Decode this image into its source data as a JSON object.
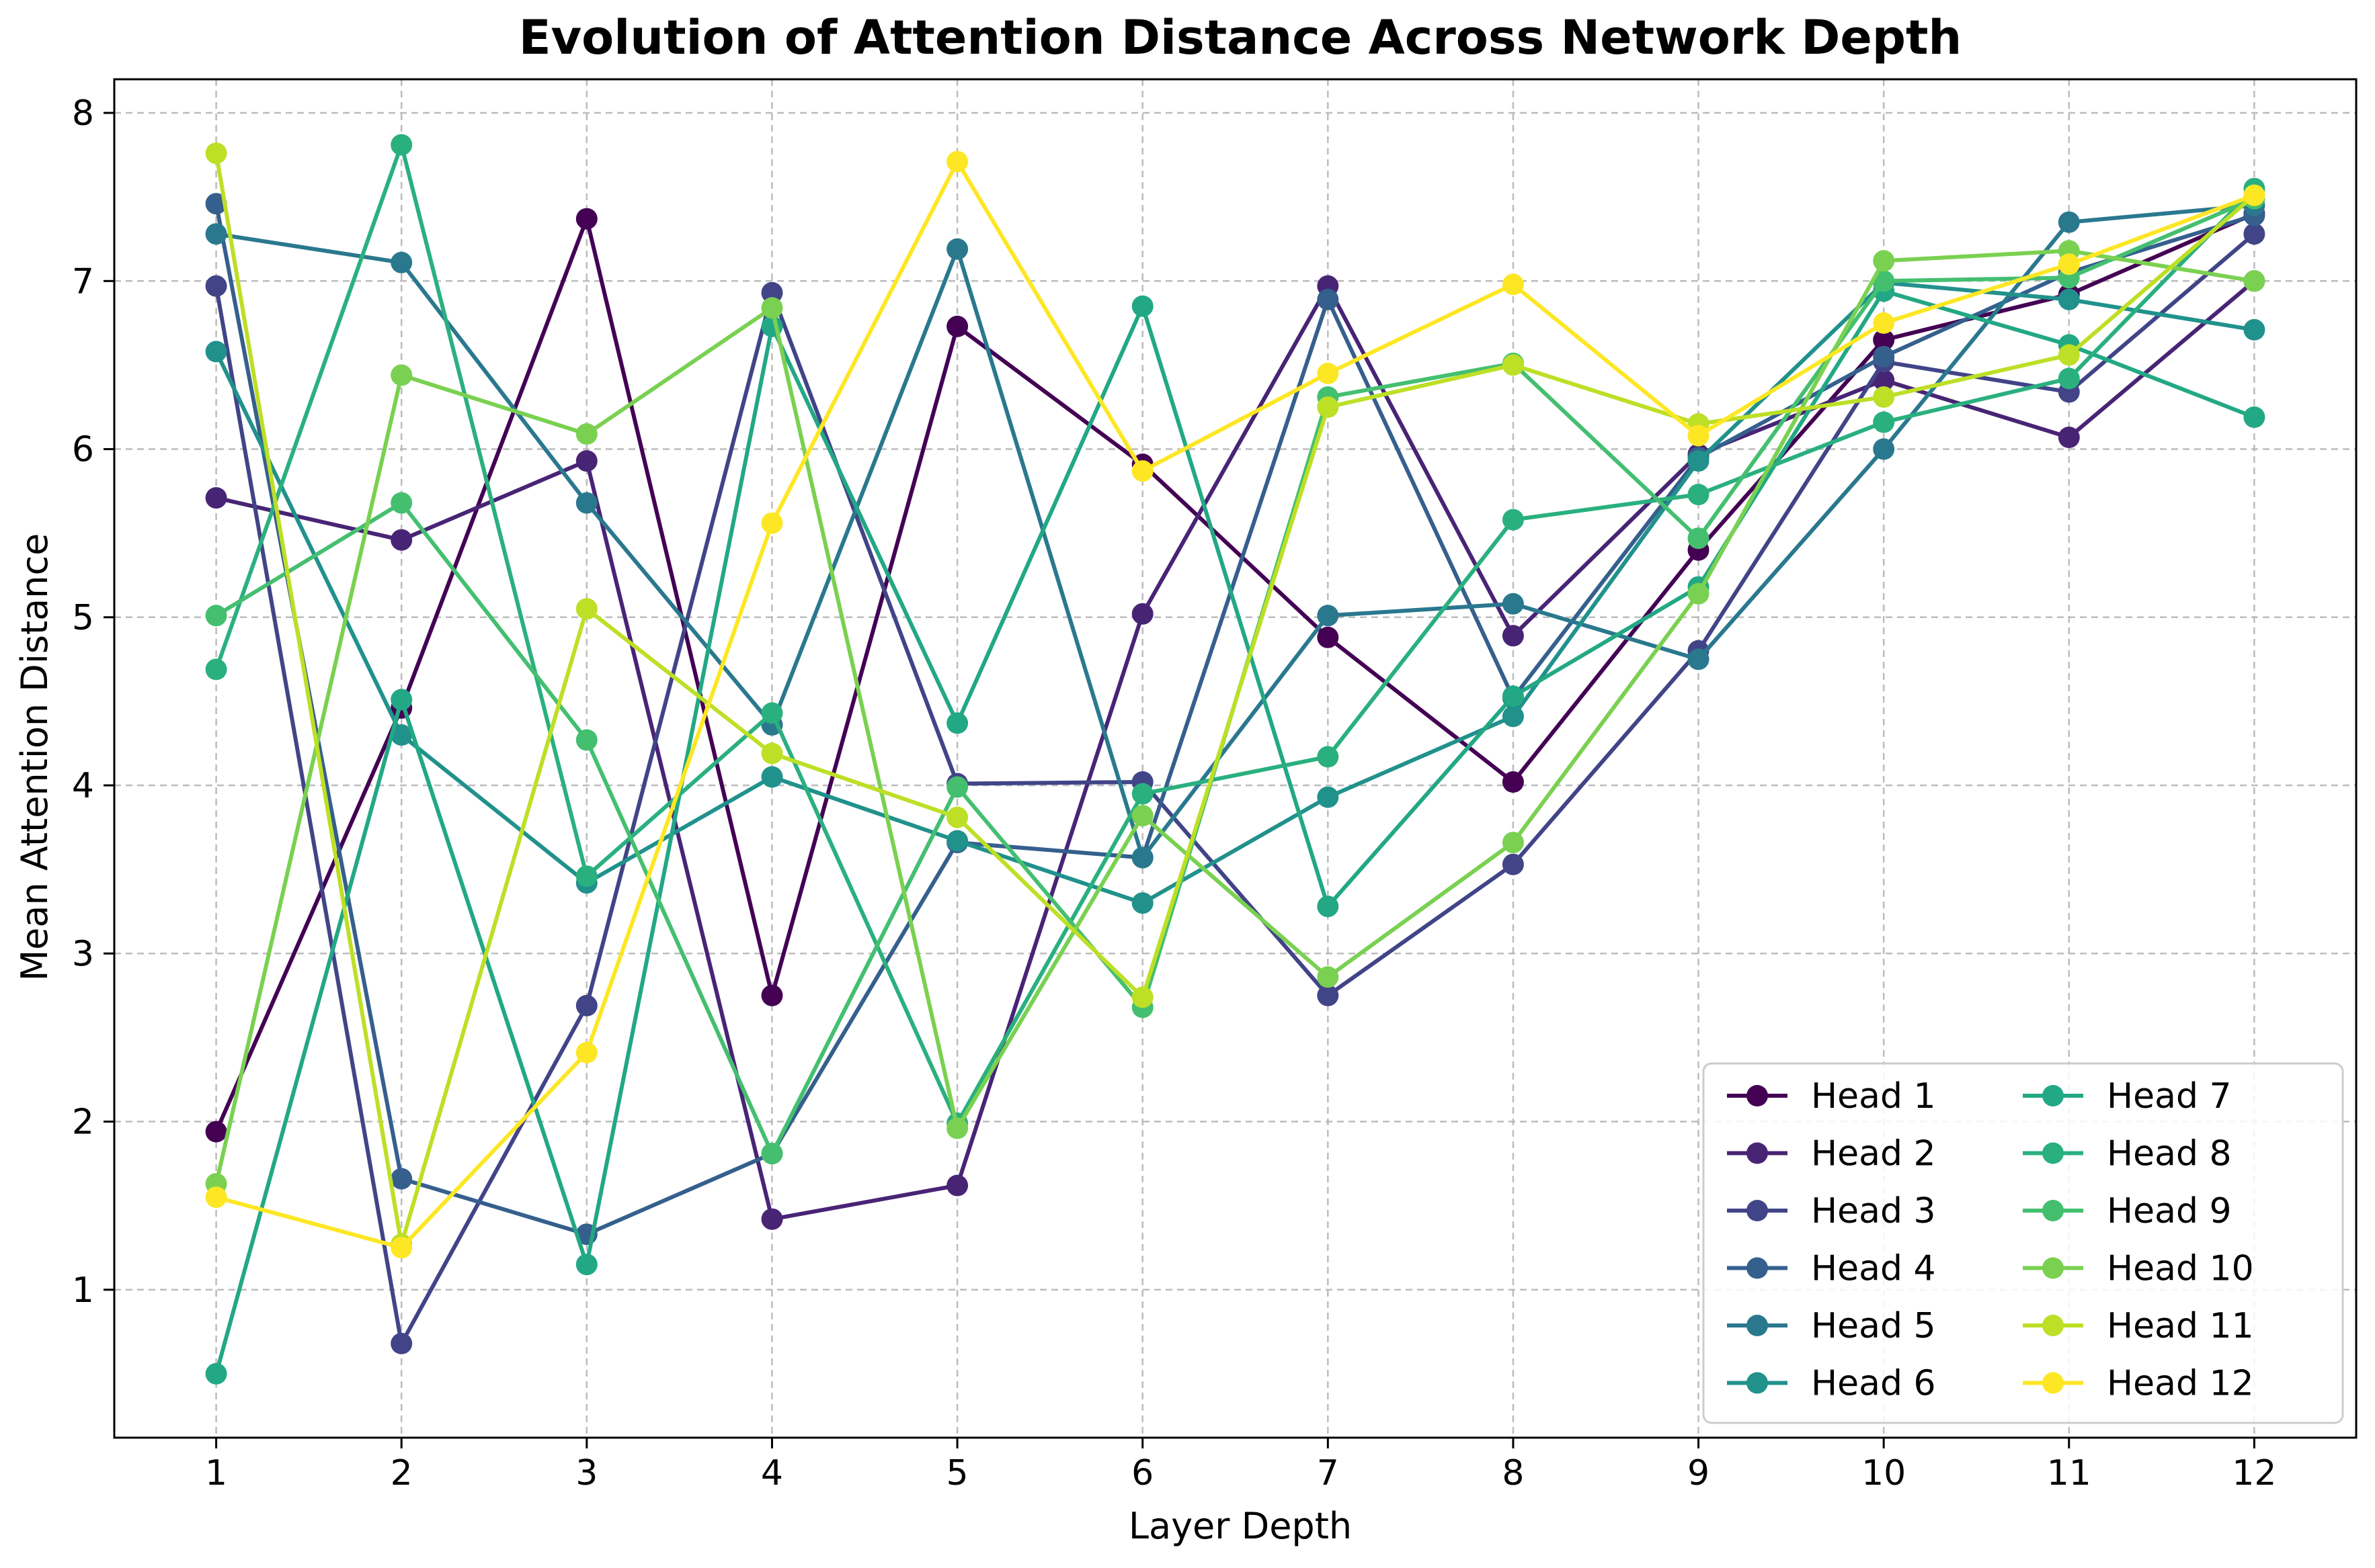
{
  "chart_data": {
    "type": "line",
    "title": "Evolution of Attention Distance Across Network Depth",
    "xlabel": "Layer Depth",
    "ylabel": "Mean Attention Distance",
    "x": [
      1,
      2,
      3,
      4,
      5,
      6,
      7,
      8,
      9,
      10,
      11,
      12
    ],
    "x_tick_labels": [
      "1",
      "2",
      "3",
      "4",
      "5",
      "6",
      "7",
      "8",
      "9",
      "10",
      "11",
      "12"
    ],
    "xlim": [
      0.45,
      12.55
    ],
    "ylim": [
      0.12,
      8.2
    ],
    "y_ticks": [
      1,
      2,
      3,
      4,
      5,
      6,
      7,
      8
    ],
    "y_tick_labels": [
      "1",
      "2",
      "3",
      "4",
      "5",
      "6",
      "7",
      "8"
    ],
    "grid": true,
    "legend_position": "lower right",
    "legend_columns": 2,
    "series": [
      {
        "name": "Head 1",
        "color": "#440154",
        "values": [
          1.94,
          4.46,
          7.37,
          2.75,
          6.73,
          5.91,
          4.88,
          4.02,
          5.4,
          6.65,
          6.92,
          7.4
        ]
      },
      {
        "name": "Head 2",
        "color": "#482475",
        "values": [
          5.71,
          5.46,
          5.93,
          1.42,
          1.62,
          5.02,
          6.97,
          4.89,
          5.97,
          6.41,
          6.07,
          7.0
        ]
      },
      {
        "name": "Head 3",
        "color": "#414487",
        "values": [
          6.97,
          0.68,
          2.69,
          6.93,
          4.01,
          4.02,
          2.75,
          3.53,
          4.8,
          6.52,
          6.34,
          7.28
        ]
      },
      {
        "name": "Head 4",
        "color": "#355f8d",
        "values": [
          7.46,
          1.66,
          1.33,
          1.81,
          3.66,
          3.57,
          6.89,
          4.52,
          5.95,
          6.55,
          7.05,
          7.39
        ]
      },
      {
        "name": "Head 5",
        "color": "#2a788e",
        "values": [
          7.28,
          7.11,
          5.68,
          4.36,
          7.19,
          3.57,
          5.01,
          5.08,
          4.75,
          6.0,
          7.35,
          7.45
        ]
      },
      {
        "name": "Head 6",
        "color": "#21918c",
        "values": [
          6.58,
          4.3,
          3.42,
          4.05,
          3.67,
          3.3,
          3.93,
          4.41,
          5.93,
          6.99,
          6.89,
          6.71
        ]
      },
      {
        "name": "Head 7",
        "color": "#22a884",
        "values": [
          0.5,
          4.51,
          1.15,
          6.73,
          4.37,
          6.85,
          3.28,
          4.53,
          5.18,
          6.94,
          6.62,
          6.19
        ]
      },
      {
        "name": "Head 8",
        "color": "#2ab07f",
        "values": [
          4.69,
          7.81,
          3.46,
          4.43,
          1.99,
          3.95,
          4.17,
          5.58,
          5.73,
          6.16,
          6.42,
          7.55
        ]
      },
      {
        "name": "Head 9",
        "color": "#44bf70",
        "values": [
          5.01,
          5.68,
          4.27,
          1.81,
          3.99,
          2.68,
          6.31,
          6.51,
          5.47,
          7.0,
          7.02,
          7.49
        ]
      },
      {
        "name": "Head 10",
        "color": "#7ad151",
        "values": [
          1.63,
          6.44,
          6.09,
          6.84,
          1.96,
          3.82,
          2.86,
          3.66,
          5.14,
          7.12,
          7.18,
          7.0
        ]
      },
      {
        "name": "Head 11",
        "color": "#bddf26",
        "values": [
          7.76,
          1.27,
          5.05,
          4.19,
          3.81,
          2.74,
          6.25,
          6.5,
          6.15,
          6.31,
          6.56,
          7.51
        ]
      },
      {
        "name": "Head 12",
        "color": "#fde725",
        "values": [
          1.55,
          1.25,
          2.41,
          5.56,
          7.71,
          5.87,
          6.45,
          6.98,
          6.08,
          6.75,
          7.1,
          7.51
        ]
      }
    ]
  }
}
